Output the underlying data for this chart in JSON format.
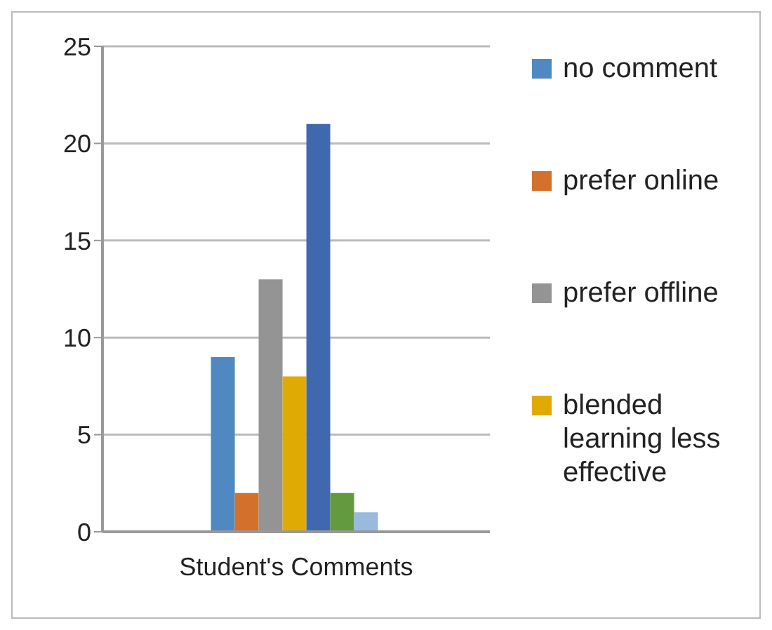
{
  "chart_data": {
    "type": "bar",
    "categories": [
      "Student's Comments"
    ],
    "series": [
      {
        "name": "no comment",
        "color": "#5089c1",
        "values": [
          9
        ]
      },
      {
        "name": "prefer online",
        "color": "#d2702c",
        "values": [
          2
        ]
      },
      {
        "name": "prefer offline",
        "color": "#949494",
        "values": [
          13
        ]
      },
      {
        "name": "blended learning less effective",
        "color": "#e0aa05",
        "values": [
          8
        ]
      },
      {
        "color": "#3f68ae",
        "values": [
          21
        ]
      },
      {
        "color": "#639a3f",
        "values": [
          2
        ]
      },
      {
        "color": "#99b9df",
        "values": [
          1
        ]
      }
    ],
    "ylim": [
      0,
      25
    ],
    "yticks": [
      0,
      5,
      10,
      15,
      20,
      25
    ],
    "grid": "y",
    "legend": "right"
  }
}
